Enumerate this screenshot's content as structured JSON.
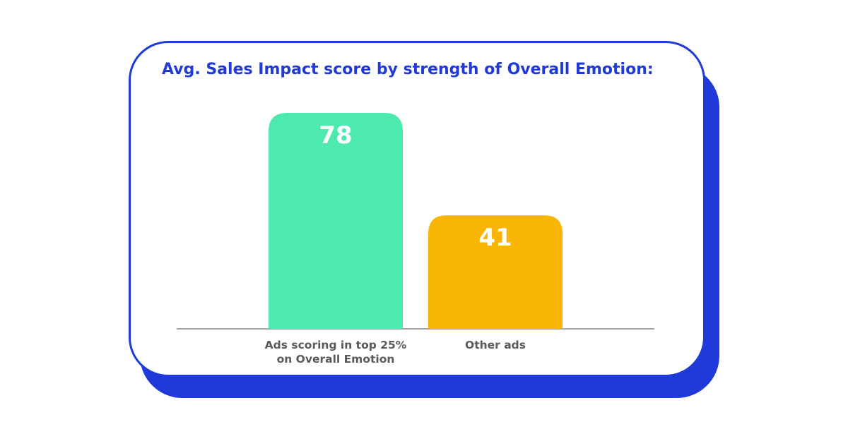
{
  "chart_data": {
    "type": "bar",
    "title": "Avg. Sales Impact score by strength of Overall Emotion:",
    "categories": [
      [
        "Ads scoring in top 25%",
        "on Overall Emotion"
      ],
      [
        "Other ads"
      ]
    ],
    "values": [
      78,
      41
    ],
    "data_labels": [
      "78",
      "41"
    ],
    "ylim": [
      0,
      78
    ],
    "grid": false,
    "legend": "none",
    "colors": [
      "#4deab0",
      "#f8b506"
    ],
    "axis_color": "#8a8a8a",
    "title_color": "#1f3ad8"
  }
}
